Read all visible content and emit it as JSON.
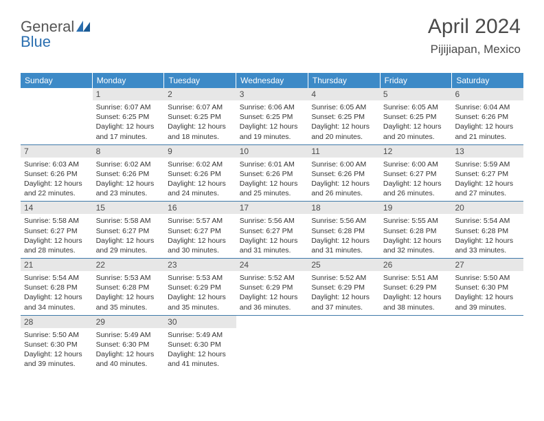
{
  "brand": {
    "part1": "General",
    "part2": "Blue"
  },
  "title": {
    "month": "April 2024",
    "location": "Pijijiapan, Mexico"
  },
  "colors": {
    "header_bg": "#3d8ac7",
    "header_text": "#ffffff",
    "daynum_bg": "#e7e7e7",
    "rule": "#3d78a8",
    "brand_blue": "#2b6fb0",
    "brand_gray": "#555555"
  },
  "day_headers": [
    "Sunday",
    "Monday",
    "Tuesday",
    "Wednesday",
    "Thursday",
    "Friday",
    "Saturday"
  ],
  "layout": {
    "first_weekday_offset": 1,
    "days_in_month": 30
  },
  "days": {
    "1": {
      "sunrise": "6:07 AM",
      "sunset": "6:25 PM",
      "daylight": "12 hours and 17 minutes."
    },
    "2": {
      "sunrise": "6:07 AM",
      "sunset": "6:25 PM",
      "daylight": "12 hours and 18 minutes."
    },
    "3": {
      "sunrise": "6:06 AM",
      "sunset": "6:25 PM",
      "daylight": "12 hours and 19 minutes."
    },
    "4": {
      "sunrise": "6:05 AM",
      "sunset": "6:25 PM",
      "daylight": "12 hours and 20 minutes."
    },
    "5": {
      "sunrise": "6:05 AM",
      "sunset": "6:25 PM",
      "daylight": "12 hours and 20 minutes."
    },
    "6": {
      "sunrise": "6:04 AM",
      "sunset": "6:26 PM",
      "daylight": "12 hours and 21 minutes."
    },
    "7": {
      "sunrise": "6:03 AM",
      "sunset": "6:26 PM",
      "daylight": "12 hours and 22 minutes."
    },
    "8": {
      "sunrise": "6:02 AM",
      "sunset": "6:26 PM",
      "daylight": "12 hours and 23 minutes."
    },
    "9": {
      "sunrise": "6:02 AM",
      "sunset": "6:26 PM",
      "daylight": "12 hours and 24 minutes."
    },
    "10": {
      "sunrise": "6:01 AM",
      "sunset": "6:26 PM",
      "daylight": "12 hours and 25 minutes."
    },
    "11": {
      "sunrise": "6:00 AM",
      "sunset": "6:26 PM",
      "daylight": "12 hours and 26 minutes."
    },
    "12": {
      "sunrise": "6:00 AM",
      "sunset": "6:27 PM",
      "daylight": "12 hours and 26 minutes."
    },
    "13": {
      "sunrise": "5:59 AM",
      "sunset": "6:27 PM",
      "daylight": "12 hours and 27 minutes."
    },
    "14": {
      "sunrise": "5:58 AM",
      "sunset": "6:27 PM",
      "daylight": "12 hours and 28 minutes."
    },
    "15": {
      "sunrise": "5:58 AM",
      "sunset": "6:27 PM",
      "daylight": "12 hours and 29 minutes."
    },
    "16": {
      "sunrise": "5:57 AM",
      "sunset": "6:27 PM",
      "daylight": "12 hours and 30 minutes."
    },
    "17": {
      "sunrise": "5:56 AM",
      "sunset": "6:27 PM",
      "daylight": "12 hours and 31 minutes."
    },
    "18": {
      "sunrise": "5:56 AM",
      "sunset": "6:28 PM",
      "daylight": "12 hours and 31 minutes."
    },
    "19": {
      "sunrise": "5:55 AM",
      "sunset": "6:28 PM",
      "daylight": "12 hours and 32 minutes."
    },
    "20": {
      "sunrise": "5:54 AM",
      "sunset": "6:28 PM",
      "daylight": "12 hours and 33 minutes."
    },
    "21": {
      "sunrise": "5:54 AM",
      "sunset": "6:28 PM",
      "daylight": "12 hours and 34 minutes."
    },
    "22": {
      "sunrise": "5:53 AM",
      "sunset": "6:28 PM",
      "daylight": "12 hours and 35 minutes."
    },
    "23": {
      "sunrise": "5:53 AM",
      "sunset": "6:29 PM",
      "daylight": "12 hours and 35 minutes."
    },
    "24": {
      "sunrise": "5:52 AM",
      "sunset": "6:29 PM",
      "daylight": "12 hours and 36 minutes."
    },
    "25": {
      "sunrise": "5:52 AM",
      "sunset": "6:29 PM",
      "daylight": "12 hours and 37 minutes."
    },
    "26": {
      "sunrise": "5:51 AM",
      "sunset": "6:29 PM",
      "daylight": "12 hours and 38 minutes."
    },
    "27": {
      "sunrise": "5:50 AM",
      "sunset": "6:30 PM",
      "daylight": "12 hours and 39 minutes."
    },
    "28": {
      "sunrise": "5:50 AM",
      "sunset": "6:30 PM",
      "daylight": "12 hours and 39 minutes."
    },
    "29": {
      "sunrise": "5:49 AM",
      "sunset": "6:30 PM",
      "daylight": "12 hours and 40 minutes."
    },
    "30": {
      "sunrise": "5:49 AM",
      "sunset": "6:30 PM",
      "daylight": "12 hours and 41 minutes."
    }
  },
  "labels": {
    "sunrise": "Sunrise:",
    "sunset": "Sunset:",
    "daylight": "Daylight:"
  }
}
